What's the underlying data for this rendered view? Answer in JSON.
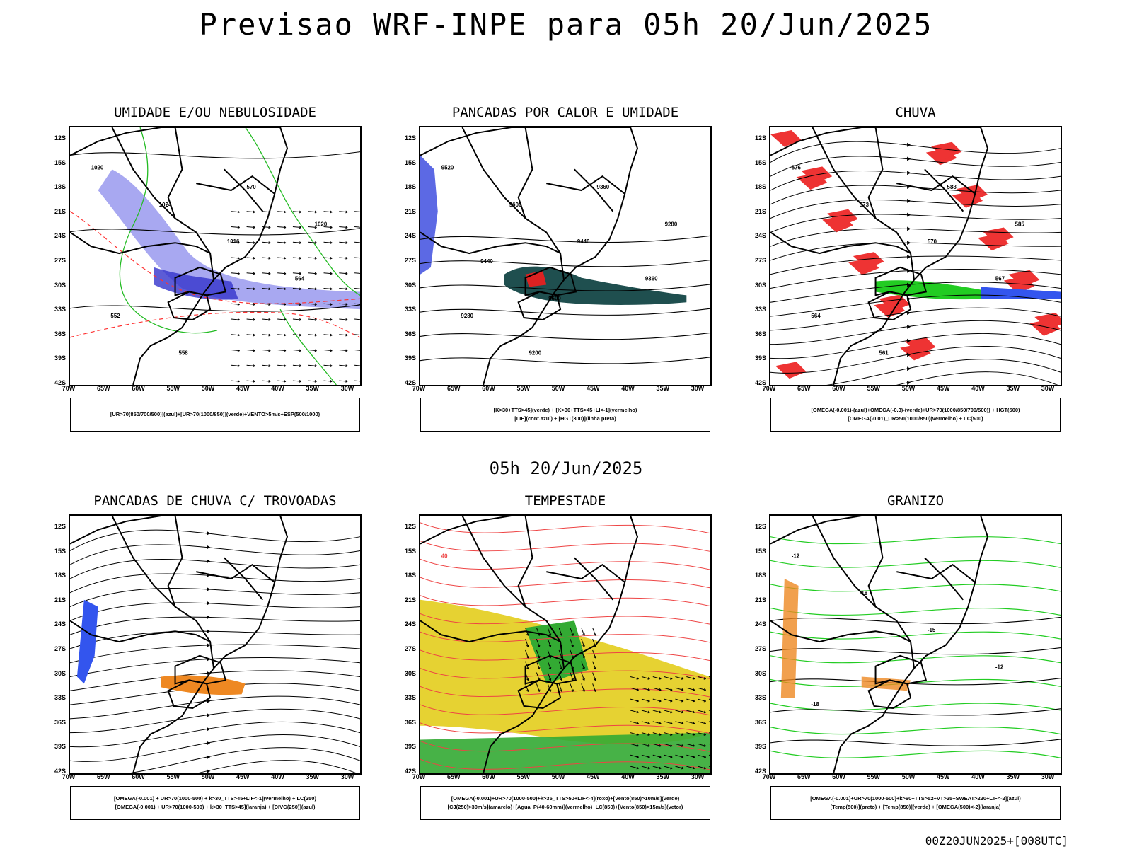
{
  "page": {
    "title": "Previsao WRF-INPE  para 05h 20/Jun/2025",
    "subtitle": "05h 20/Jun/2025",
    "footer": "00Z20JUN2025+[008UTC]"
  },
  "axes": {
    "lat_labels": [
      "12S",
      "15S",
      "18S",
      "21S",
      "24S",
      "27S",
      "30S",
      "33S",
      "36S",
      "39S",
      "42S"
    ],
    "lon_labels": [
      "70W",
      "65W",
      "60W",
      "55W",
      "50W",
      "45W",
      "40W",
      "35W",
      "30W"
    ]
  },
  "panels": [
    {
      "title": "UMIDADE E/OU NEBULOSIDADE",
      "legend": [
        "[UR>70(850/700/500)](azul)+[UR>70(1000/850)](verde)+VENTO>5m/s+ESP(500/1000)"
      ],
      "labels": [
        "1020",
        "1024",
        "1016",
        "564",
        "552",
        "558",
        "570",
        "1020"
      ]
    },
    {
      "title": "PANCADAS POR CALOR E UMIDADE",
      "legend": [
        "[K>30+TTS>45](verde) + [K>30+TTS>45+LI<-1](vermelho)",
        "[LIF](cont.azul) + [HGT(300)](linha preta)"
      ],
      "labels": [
        "9520",
        "9600",
        "9440",
        "9360",
        "9280",
        "9200",
        "9360",
        "9280",
        "9440",
        "9600"
      ]
    },
    {
      "title": "CHUVA",
      "legend": [
        "[OMEGA(-0.001)-(azul)+OMEGA(-0.3)-(verde)+UR>70(1000/850/700/500)] + HGT(500)",
        "[OMEGA(-0.01)_UR>50(1000/850)(vermelho) + LC(500)"
      ],
      "labels": [
        "576",
        "573",
        "570",
        "567",
        "564",
        "561",
        "588",
        "585"
      ]
    },
    {
      "title": "PANCADAS DE CHUVA C/ TROVOADAS",
      "legend": [
        "[OMEGA(-0.001) + UR>70(1000-500) + k>30_TTS>45+LIF<-1](vermelho) + LC(250)",
        "[OMEGA(-0.001) + UR>70(1000-500) + k>30_TTS>45](laranja) + [DIVG(250)](azul)"
      ],
      "labels": []
    },
    {
      "title": "TEMPESTADE",
      "legend": [
        "[OMEGA(-0.001)+UR>70(1000-500)+k>35_TTS>50+LIF<-4](roxo)+[Vento(850)>10m/s](verde)",
        "[CJ(250)>30m/s](amarelo)+[Agua_P(40-60mm)](vermelho)+LC(850)+[Vento(850)>15m/s](vetor)"
      ],
      "labels": [
        "40"
      ]
    },
    {
      "title": "GRANIZO",
      "legend": [
        "[OMEGA(-0.001)+UR>70(1000-500)+k>60+TTS>52+VT>25+SWEAT>220+LIF<-2](azul)",
        "[Temp(500)](preto) + [Temp(850)](verde) + [OMEGA(500)<-2](laranja)"
      ],
      "labels": [
        "-12",
        "-18",
        "-15",
        "-12",
        "-18"
      ]
    }
  ]
}
